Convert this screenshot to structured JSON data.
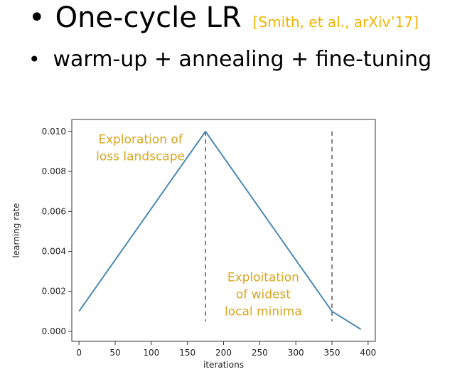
{
  "header": {
    "bullet": "•",
    "title": "One-cycle LR",
    "citation": "[Smith, et al., arXiv’17]"
  },
  "subheader": {
    "bullet": "•",
    "text": "warm-up + annealing + fine-tuning"
  },
  "colors": {
    "citation": "#f0b400",
    "line": "#4a8ab3",
    "annotation": "#d9a520",
    "axis": "#333333",
    "dashed": "#333333"
  },
  "chart_data": {
    "type": "line",
    "title": "",
    "xlabel": "iterations",
    "ylabel": "learning rate",
    "xlim": [
      -10,
      410
    ],
    "ylim": [
      -0.0005,
      0.0106
    ],
    "xticks": [
      0,
      50,
      100,
      150,
      200,
      250,
      300,
      350,
      400
    ],
    "yticks": [
      0.0,
      0.002,
      0.004,
      0.006,
      0.008,
      0.01
    ],
    "ytick_labels": [
      "0.000",
      "0.002",
      "0.004",
      "0.006",
      "0.008",
      "0.010"
    ],
    "grid": false,
    "series": [
      {
        "x": [
          0,
          175,
          350,
          390
        ],
        "y": [
          0.001,
          0.01,
          0.001,
          0.0001
        ]
      }
    ],
    "vlines": [
      175,
      350
    ],
    "annotations": [
      {
        "lines": [
          "Exploration of",
          "loss landscape"
        ],
        "x": 85,
        "y": 0.0094,
        "align": "middle"
      },
      {
        "lines": [
          "Exploitation",
          "of widest",
          "local minima"
        ],
        "x": 255,
        "y": 0.0025,
        "align": "middle"
      }
    ]
  }
}
